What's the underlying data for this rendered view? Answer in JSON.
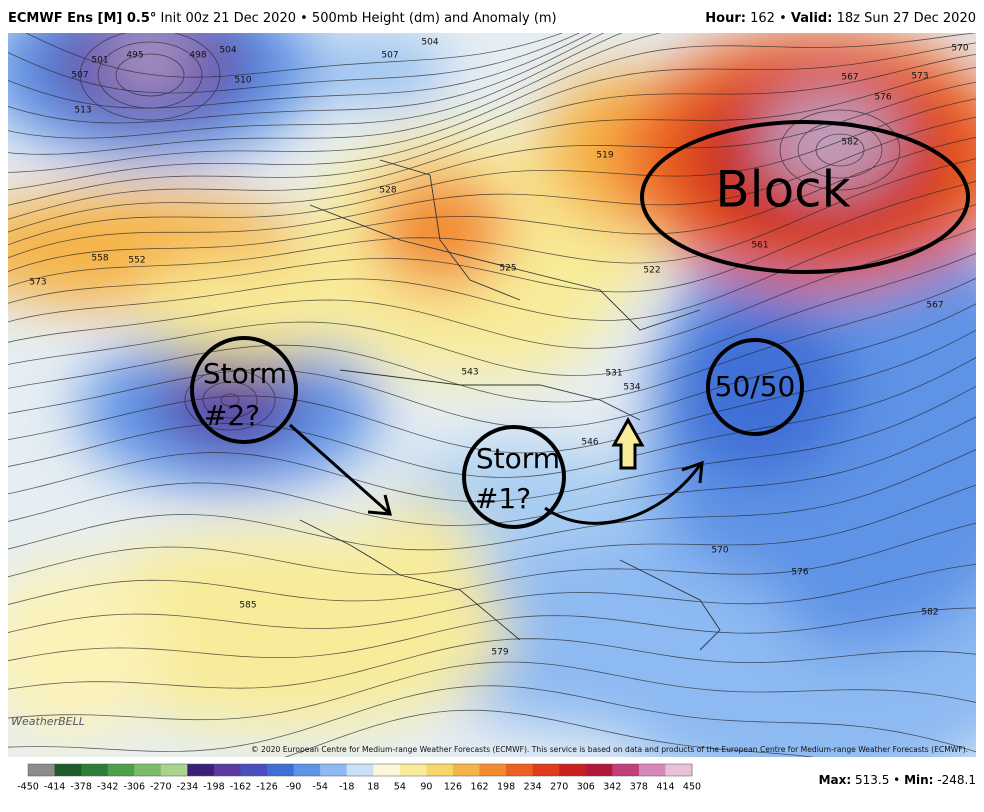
{
  "header": {
    "title_bold": "ECMWF Ens [M] 0.5°",
    "title_rest": "Init 00z 21 Dec 2020 • 500mb Height (dm) and Anomaly (m)",
    "hour_label": "Hour:",
    "hour_value": "162 •",
    "valid_label": "Valid:",
    "valid_value": "18z Sun 27 Dec 2020"
  },
  "annotations": {
    "block": "Block",
    "fifty": "50/50",
    "storm1": [
      "Storm",
      "#1?"
    ],
    "storm2": [
      "Storm",
      "#2?"
    ]
  },
  "contour_labels": [
    "495",
    "498",
    "501",
    "504",
    "507",
    "510",
    "513",
    "507",
    "504",
    "528",
    "519",
    "525",
    "522",
    "543",
    "531",
    "534",
    "546",
    "558",
    "552",
    "573",
    "570",
    "573",
    "567",
    "576",
    "582",
    "561",
    "567",
    "570",
    "576",
    "585",
    "582",
    "579"
  ],
  "logo": "WeatherBELL",
  "copyright": "© 2020 European Centre for Medium-range Weather Forecasts (ECMWF). This service is based on data and products of the European Centre for Medium-range Weather Forecasts (ECMWF).",
  "colorbar": {
    "labels": [
      -450,
      -414,
      -378,
      -342,
      -306,
      -270,
      -234,
      -198,
      -162,
      -126,
      -90,
      -54,
      -18,
      18,
      54,
      90,
      126,
      162,
      198,
      234,
      270,
      306,
      342,
      378,
      414,
      450
    ],
    "colors": [
      "#8c8c8c",
      "#1e5a2a",
      "#2f7d3a",
      "#4f9e4a",
      "#7dbb6a",
      "#a8d48e",
      "#3b1f78",
      "#5a3aa0",
      "#4a4fc0",
      "#3f6fd6",
      "#5f93e6",
      "#8dbaf2",
      "#c9e0f8",
      "#fbf7d8",
      "#f8ec9a",
      "#f7d66a",
      "#f6b347",
      "#f28a2e",
      "#ec6020",
      "#e23a1c",
      "#c8201e",
      "#b01a3a",
      "#c0407a",
      "#d888b8",
      "#e8c0d8"
    ]
  },
  "max_label": "Max:",
  "max_value": "513.5 •",
  "min_label": "Min:",
  "min_value": "-248.1"
}
